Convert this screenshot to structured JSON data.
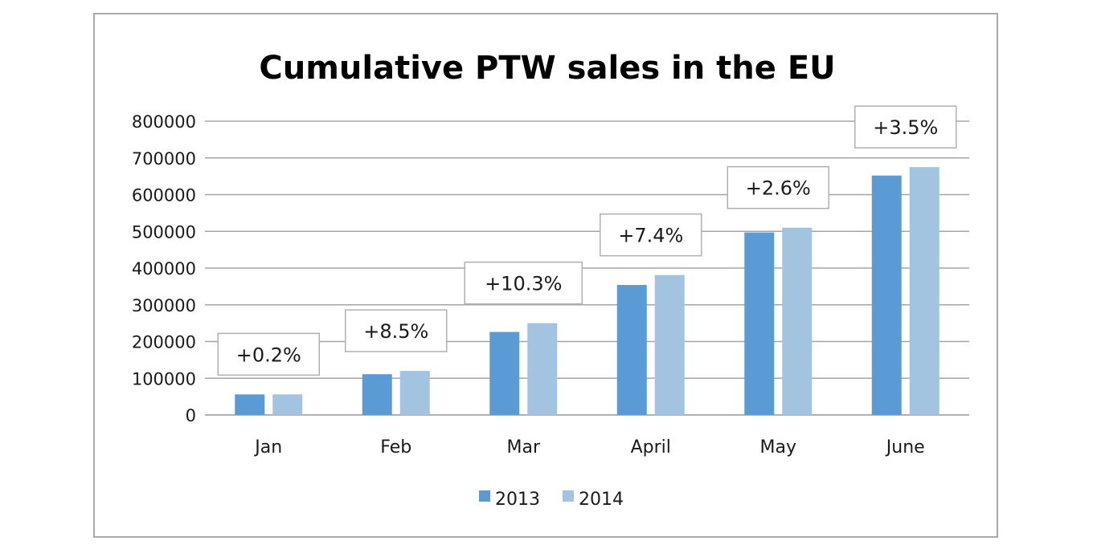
{
  "chart_data": {
    "type": "bar",
    "title": "Cumulative PTW sales in the EU",
    "xlabel": "",
    "ylabel": "",
    "categories": [
      "Jan",
      "Feb",
      "Mar",
      "April",
      "May",
      "June"
    ],
    "series": [
      {
        "name": "2013",
        "color": "#5b9bd5",
        "values": [
          56000,
          111000,
          226000,
          354000,
          497000,
          652000
        ]
      },
      {
        "name": "2014",
        "color": "#a3c4e0",
        "values": [
          56000,
          120000,
          250000,
          381000,
          510000,
          675000
        ]
      }
    ],
    "annotations": [
      "+0.2%",
      "+8.5%",
      "+10.3%",
      "+7.4%",
      "+2.6%",
      "+3.5%"
    ],
    "ylim": [
      0,
      800000
    ],
    "yticks": [
      "0",
      "100000",
      "200000",
      "300000",
      "400000",
      "500000",
      "600000",
      "700000",
      "800000"
    ],
    "grid": true,
    "legend": "bottom"
  }
}
